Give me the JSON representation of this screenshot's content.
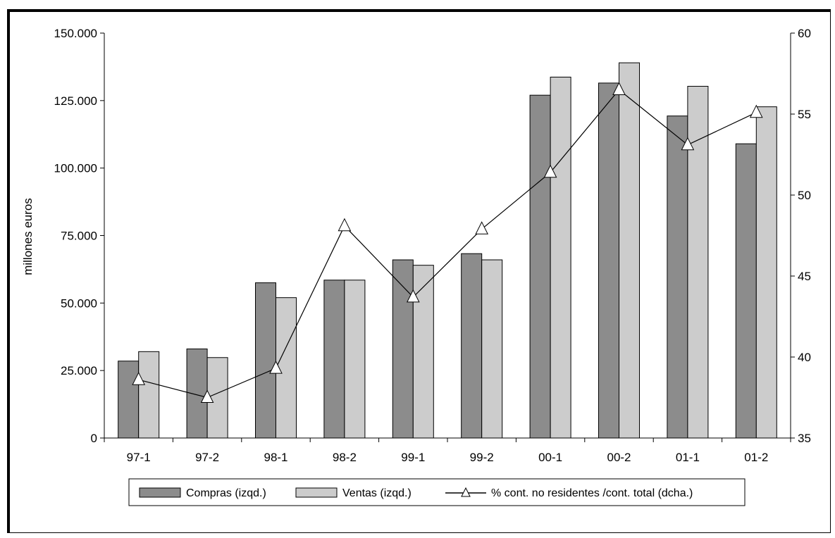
{
  "chart_data": {
    "type": "bar",
    "categories": [
      "97-1",
      "97-2",
      "98-1",
      "98-2",
      "99-1",
      "99-2",
      "00-1",
      "00-2",
      "01-1",
      "01-2"
    ],
    "series": [
      {
        "name": "Compras (izqd.)",
        "axis": "left",
        "type": "bar",
        "color": "#8c8c8c",
        "values": [
          28500,
          33000,
          57500,
          58500,
          66000,
          68300,
          127000,
          131500,
          119300,
          109000
        ]
      },
      {
        "name": "Ventas (izqd.)",
        "axis": "left",
        "type": "bar",
        "color": "#cccccc",
        "values": [
          32000,
          29800,
          52000,
          58500,
          64000,
          66000,
          133700,
          139000,
          130300,
          122700
        ]
      },
      {
        "name": "% cont. no residentes /cont. total (dcha.)",
        "axis": "right",
        "type": "line",
        "marker": "triangle",
        "color": "#000000",
        "values": [
          38.6,
          37.5,
          39.3,
          48.1,
          43.7,
          47.9,
          51.4,
          56.5,
          53.1,
          55.1
        ]
      }
    ],
    "ylabel": "millones euros",
    "ylim": [
      0,
      150000
    ],
    "yticks": [
      "0",
      "25.000",
      "50.000",
      "75.000",
      "100.000",
      "125.000",
      "150.000"
    ],
    "y2lim": [
      35,
      60
    ],
    "y2ticks": [
      "35",
      "40",
      "45",
      "50",
      "55",
      "60"
    ],
    "legend_position": "bottom",
    "grid": false
  }
}
